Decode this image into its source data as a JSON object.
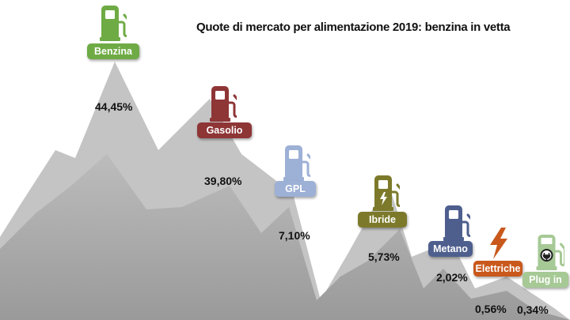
{
  "chart_data": {
    "type": "bar",
    "title": "Quote di mercato per alimentazione 2019: benzina in vetta",
    "categories": [
      "Benzina",
      "Gasolio",
      "GPL",
      "Ibride",
      "Metano",
      "Elettriche",
      "Plug in"
    ],
    "value_labels": [
      "44,45%",
      "39,80%",
      "7,10%",
      "5,73%",
      "2,02%",
      "0,56%",
      "0,34%"
    ],
    "values": [
      44.45,
      39.8,
      7.1,
      5.73,
      2.02,
      0.56,
      0.34
    ],
    "unit": "%",
    "colors": [
      "#6fab45",
      "#8e3536",
      "#9db0d6",
      "#7c7a2a",
      "#4e5f8e",
      "#c9581c",
      "#a6c995"
    ],
    "icons": [
      "fuel-pump-icon",
      "fuel-pump-icon",
      "fuel-pump-icon",
      "hybrid-fuel-pump-icon",
      "fuel-pump-icon",
      "lightning-bolt-icon",
      "plug-in-charger-icon"
    ],
    "background_color": "#a8a8a8"
  }
}
